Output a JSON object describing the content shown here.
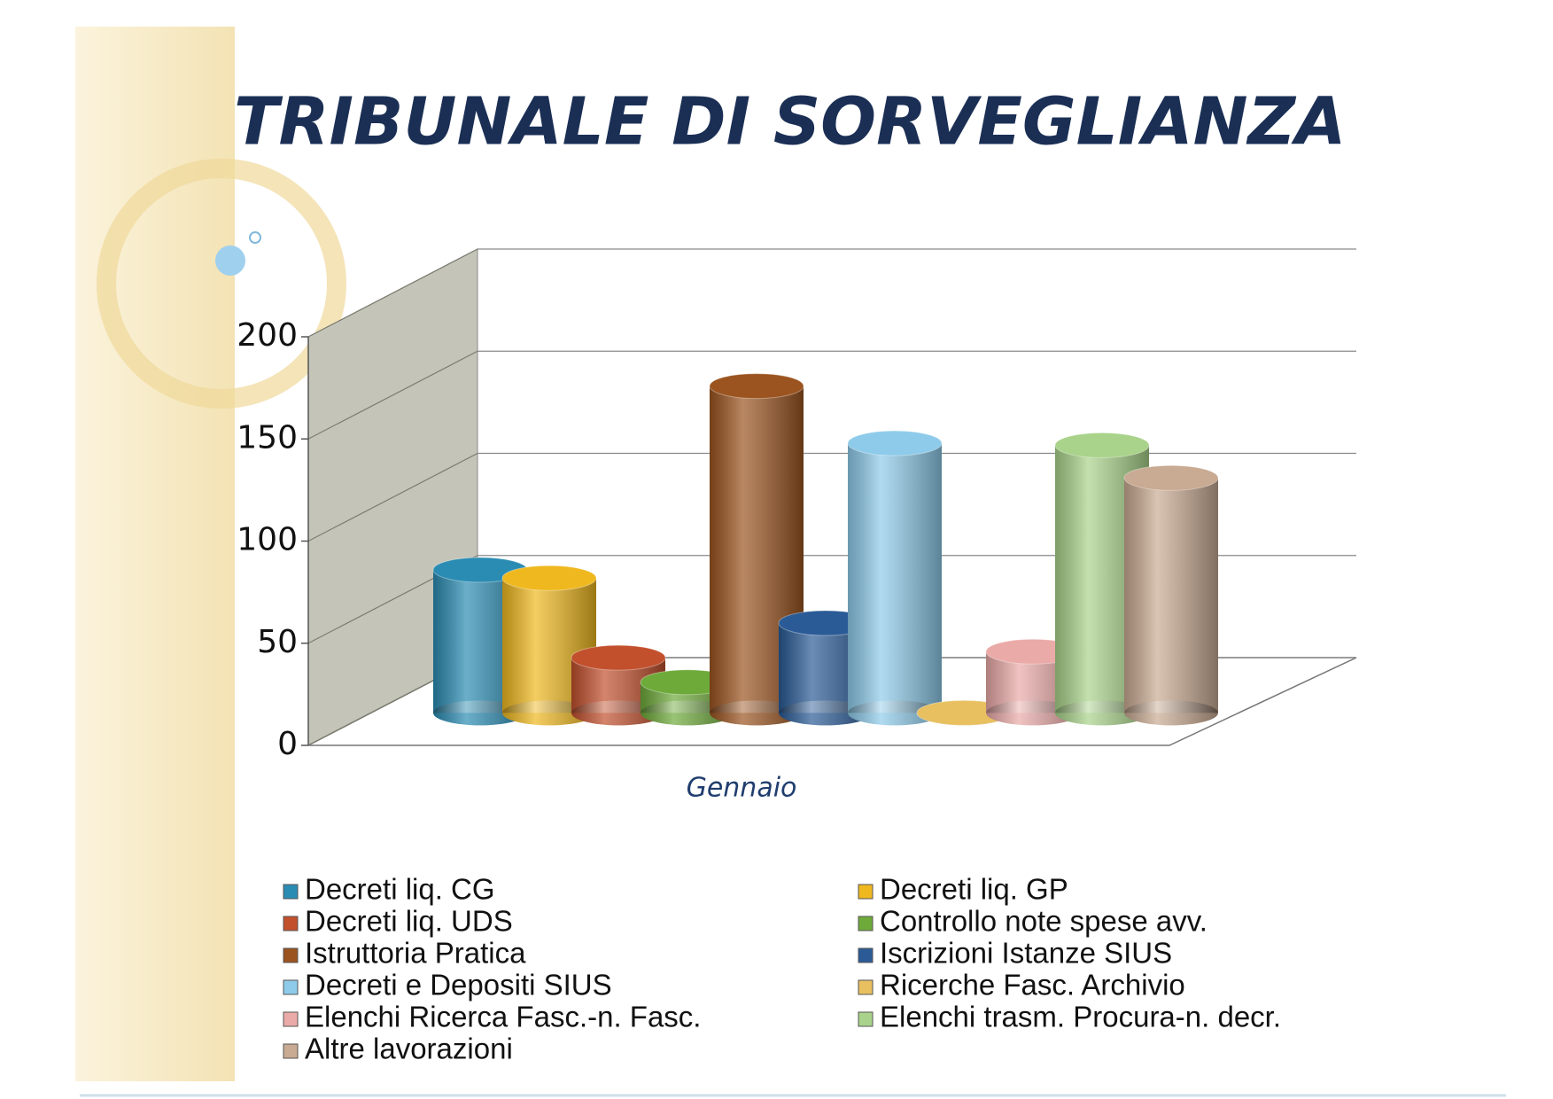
{
  "chart_data": {
    "type": "bar",
    "title": "TRIBUNALE DI SORVEGLIANZA",
    "categories": [
      "Gennaio"
    ],
    "ylim": [
      0,
      200
    ],
    "yticks": [
      0,
      50,
      100,
      150,
      200
    ],
    "grid": true,
    "legend": "bottom",
    "series": [
      {
        "name": "Decreti liq. CG",
        "color": "#2b8cb3",
        "values": [
          70
        ]
      },
      {
        "name": "Decreti liq. GP",
        "color": "#efb81f",
        "values": [
          66
        ]
      },
      {
        "name": "Decreti liq. UDS",
        "color": "#c2502d",
        "values": [
          27
        ]
      },
      {
        "name": "Controllo note spese avv.",
        "color": "#6eaa3a",
        "values": [
          15
        ]
      },
      {
        "name": "Istruttoria Pratica",
        "color": "#9b5420",
        "values": [
          160
        ]
      },
      {
        "name": "Iscrizioni Istanze SIUS",
        "color": "#2a5b96",
        "values": [
          44
        ]
      },
      {
        "name": "Decreti e Depositi SIUS",
        "color": "#8ecbea",
        "values": [
          132
        ]
      },
      {
        "name": "Ricerche Fasc. Archivio",
        "color": "#e8c060",
        "values": [
          0
        ]
      },
      {
        "name": "Elenchi Ricerca Fasc.-n. Fasc.",
        "color": "#eaaaa8",
        "values": [
          30
        ]
      },
      {
        "name": "Elenchi trasm. Procura-n. decr.",
        "color": "#a9d38a",
        "values": [
          131
        ]
      },
      {
        "name": "Altre lavorazioni",
        "color": "#c9aa92",
        "values": [
          115
        ]
      }
    ]
  }
}
